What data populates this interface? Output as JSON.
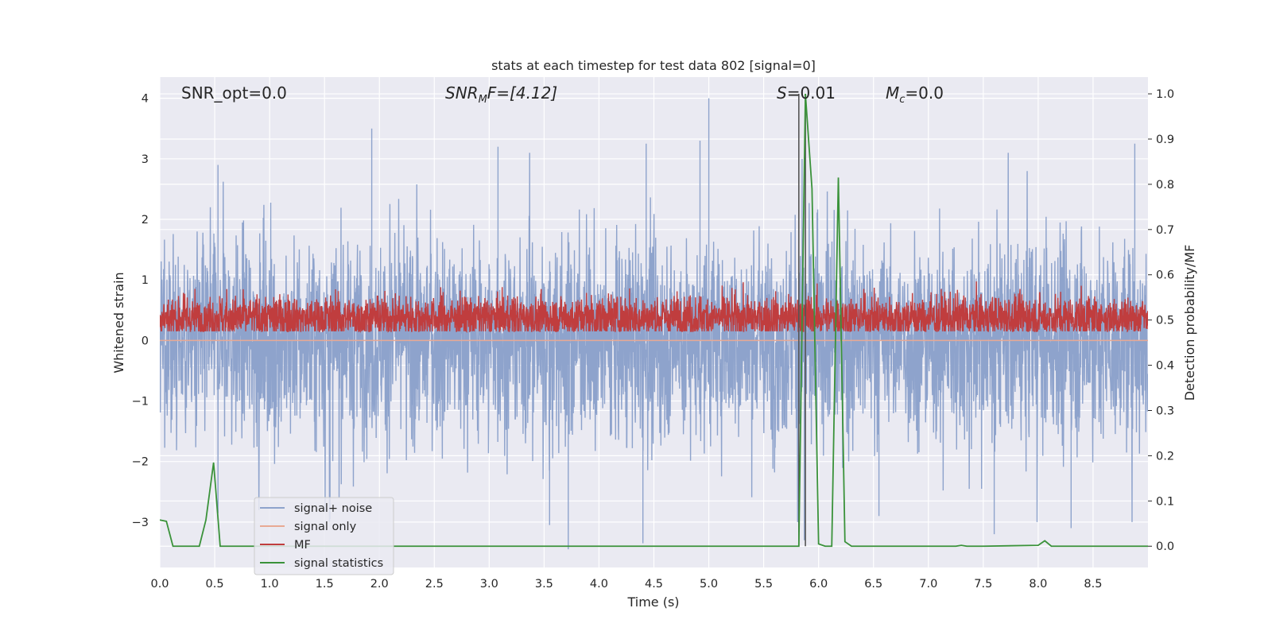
{
  "chart_data": {
    "type": "line",
    "title": "stats at each timestep for test data 802 [signal=0]",
    "xlabel": "Time (s)",
    "ylabel": "Whitened strain",
    "ylabel_right": "Detection probability/MF",
    "xlim": [
      0.0,
      9.0
    ],
    "ylim": [
      -3.75,
      4.35
    ],
    "ylim_right": [
      -0.047,
      1.037
    ],
    "x_ticks": [
      0.0,
      0.5,
      1.0,
      1.5,
      2.0,
      2.5,
      3.0,
      3.5,
      4.0,
      4.5,
      5.0,
      5.5,
      6.0,
      6.5,
      7.0,
      7.5,
      8.0,
      8.5
    ],
    "x_tick_labels": [
      "0.0",
      "0.5",
      "1.0",
      "1.5",
      "2.0",
      "2.5",
      "3.0",
      "3.5",
      "4.0",
      "4.5",
      "5.0",
      "5.5",
      "6.0",
      "6.5",
      "7.0",
      "7.5",
      "8.0",
      "8.5"
    ],
    "y_ticks": [
      -3,
      -2,
      -1,
      0,
      1,
      2,
      3,
      4
    ],
    "y_tick_labels": [
      "−3",
      "−2",
      "−1",
      "0",
      "1",
      "2",
      "3",
      "4"
    ],
    "y_right_ticks": [
      0.0,
      0.1,
      0.2,
      0.3,
      0.4,
      0.5,
      0.6,
      0.7,
      0.8,
      0.9,
      1.0
    ],
    "y_right_tick_labels": [
      "0.0",
      "0.1",
      "0.2",
      "0.3",
      "0.4",
      "0.5",
      "0.6",
      "0.7",
      "0.8",
      "0.9",
      "1.0"
    ],
    "grid": true,
    "legend_placement": "lower-left",
    "legend": [
      {
        "label": "signal+ noise",
        "color": "#8ea3cc"
      },
      {
        "label": "signal only",
        "color": "#e8a994"
      },
      {
        "label": "MF",
        "color": "#c03d3e"
      },
      {
        "label": "signal statistics",
        "color": "#3a923a"
      }
    ],
    "annotations": {
      "snr_opt": "SNR_opt=0.0",
      "snr_mf_base": "SNR",
      "snr_mf_sub": "M",
      "snr_mf_tail": "F=[4.12]",
      "s_italic": "S",
      "s_value": "=0.01",
      "mc_base": "M",
      "mc_sub": "c",
      "mc_value": "=0.0"
    },
    "series": [
      {
        "name": "signal+ noise",
        "axis": "left",
        "style": "dense-noise",
        "duration": 9.0,
        "std": 1.0,
        "peaks": [
          [
            0.53,
            2.9
          ],
          [
            0.53,
            -2.85
          ],
          [
            1.93,
            3.5
          ],
          [
            3.08,
            3.2
          ],
          [
            3.72,
            -3.45
          ],
          [
            4.43,
            3.25
          ],
          [
            4.4,
            -3.35
          ],
          [
            4.92,
            3.3
          ],
          [
            5.0,
            4.0
          ],
          [
            5.85,
            3.0
          ],
          [
            5.87,
            -3.3
          ],
          [
            8.88,
            3.25
          ],
          [
            6.55,
            -2.9
          ],
          [
            7.6,
            -3.2
          ],
          [
            8.3,
            -3.1
          ],
          [
            3.55,
            -3.05
          ],
          [
            1.55,
            -2.95
          ]
        ]
      },
      {
        "name": "signal only",
        "axis": "left",
        "x": [
          0.0,
          9.0
        ],
        "y": [
          0.0,
          0.0
        ]
      },
      {
        "name": "MF",
        "axis": "right",
        "style": "dense-noise",
        "duration": 9.0,
        "center": 0.505,
        "amplitude": 0.05
      },
      {
        "name": "signal statistics",
        "axis": "right",
        "x": [
          0.0,
          0.06,
          0.12,
          0.18,
          0.24,
          0.3,
          0.36,
          0.42,
          0.49,
          0.55,
          0.61,
          0.67,
          1.0,
          2.0,
          3.0,
          4.0,
          5.0,
          5.5,
          5.82,
          5.88,
          5.94,
          6.0,
          6.06,
          6.12,
          6.18,
          6.24,
          6.3,
          6.5,
          7.0,
          7.25,
          7.3,
          7.35,
          7.5,
          8.0,
          8.06,
          8.12,
          8.2,
          8.5,
          9.0
        ],
        "y": [
          0.058,
          0.055,
          0.0,
          0.0,
          0.0,
          0.0,
          0.0,
          0.058,
          0.185,
          0.0,
          0.0,
          0.0,
          0.0,
          0.0,
          0.0,
          0.0,
          0.0,
          0.0,
          0.0,
          1.0,
          0.79,
          0.005,
          0.0,
          0.0,
          0.815,
          0.01,
          0.0,
          0.0,
          0.0,
          0.0,
          0.002,
          0.0,
          0.0,
          0.002,
          0.012,
          0.0,
          0.0,
          0.0,
          0.0
        ]
      },
      {
        "name": "marker",
        "axis": "right",
        "x": [
          5.82,
          5.82
        ],
        "y": [
          0.0,
          1.0
        ]
      },
      {
        "name": "marker",
        "axis": "right",
        "x": [
          5.88,
          5.88
        ],
        "y": [
          0.0,
          1.0
        ]
      }
    ]
  }
}
